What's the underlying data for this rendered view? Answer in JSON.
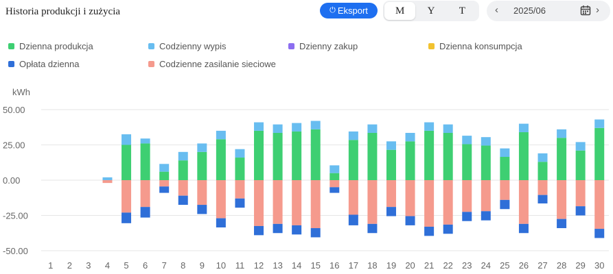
{
  "header": {
    "title": "Historia produkcji i zużycia",
    "export_label": "Eksport",
    "period_options": [
      "M",
      "Y",
      "T"
    ],
    "selected_period": "M",
    "date": "2025/06"
  },
  "colors": {
    "production": "#3ecf72",
    "export": "#68bdf0",
    "purchase": "#8c6ef0",
    "consumption": "#f2c230",
    "charge": "#2f6fd8",
    "grid": "#f59a8d"
  },
  "chart_data": {
    "type": "bar",
    "stacked": true,
    "title": "",
    "ylabel": "kWh",
    "xlabel": "",
    "ylim": [
      -50,
      50
    ],
    "yticks": [
      "50.00",
      "25.00",
      "0.00",
      "-25.00",
      "-50.00"
    ],
    "grid": true,
    "legend_position": "top-left",
    "categories": [
      "1",
      "2",
      "3",
      "4",
      "5",
      "6",
      "7",
      "8",
      "9",
      "10",
      "11",
      "12",
      "13",
      "14",
      "15",
      "16",
      "17",
      "18",
      "19",
      "20",
      "21",
      "22",
      "23",
      "24",
      "25",
      "26",
      "27",
      "28",
      "29",
      "30"
    ],
    "series": [
      {
        "name": "Dzienna produkcja",
        "color_key": "production",
        "values": [
          0,
          0,
          0,
          0,
          25,
          26,
          6,
          14,
          20,
          29,
          16,
          35,
          33.5,
          34.5,
          36,
          5,
          28.5,
          33.5,
          21.5,
          27.5,
          35,
          33.5,
          25.5,
          24.5,
          16.5,
          34,
          13,
          30,
          21,
          37
        ]
      },
      {
        "name": "Codzienny wypis",
        "color_key": "export",
        "values": [
          0,
          0,
          0,
          2,
          7.5,
          3.5,
          5.5,
          6,
          6,
          6,
          6,
          6,
          6,
          6,
          6,
          5.5,
          6,
          6,
          6,
          6,
          6,
          6,
          6,
          6,
          6,
          6,
          6,
          6,
          6,
          6
        ]
      },
      {
        "name": "Dzienny zakup",
        "color_key": "purchase",
        "values": [
          0,
          0,
          0,
          0,
          0,
          0,
          0,
          0,
          0,
          0,
          0,
          0,
          0,
          0,
          0,
          0,
          0,
          0,
          0,
          0,
          0,
          0,
          0,
          0,
          0,
          0,
          0,
          0,
          0,
          0
        ]
      },
      {
        "name": "Dzienna konsumpcja",
        "color_key": "consumption",
        "values": [
          0,
          0,
          0,
          0,
          0,
          0,
          0,
          0,
          0,
          0,
          0,
          0,
          0,
          0,
          0,
          0,
          0,
          0,
          0,
          0,
          0,
          0,
          0,
          0,
          0,
          0,
          0,
          0,
          0,
          0
        ]
      },
      {
        "name": "Opłata dzienna",
        "color_key": "charge",
        "values": [
          0,
          0,
          0,
          0,
          -7.5,
          -7.5,
          -4.5,
          -6.5,
          -6.5,
          -6.5,
          -6.5,
          -6.5,
          -6.5,
          -6.5,
          -6.5,
          -4,
          -7.5,
          -6.5,
          -6.5,
          -6.5,
          -6.5,
          -6.5,
          -6.5,
          -6.5,
          -6.5,
          -6.5,
          -6,
          -6.5,
          -6.5,
          -6.5
        ]
      },
      {
        "name": "Codzienne zasilanie sieciowe",
        "color_key": "grid",
        "values": [
          0,
          0,
          0,
          -2,
          -23,
          -19,
          -4.5,
          -11,
          -17.5,
          -27,
          -13,
          -32.5,
          -31,
          -32,
          -34,
          -5,
          -24.5,
          -31,
          -19,
          -25.5,
          -33,
          -31.5,
          -22.5,
          -22,
          -14,
          -31,
          -10.5,
          -27.5,
          -18.5,
          -34.5
        ]
      }
    ]
  }
}
